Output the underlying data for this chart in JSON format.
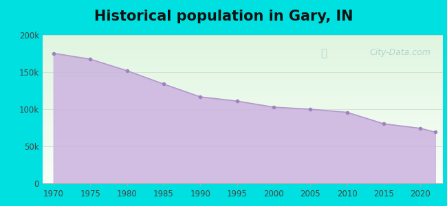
{
  "title": "Historical population in Gary, IN",
  "title_fontsize": 15,
  "title_fontweight": "bold",
  "years": [
    1970,
    1975,
    1980,
    1985,
    1990,
    1995,
    2000,
    2005,
    2010,
    2015,
    2020,
    2022
  ],
  "population": [
    175415,
    167490,
    151953,
    133911,
    116646,
    110975,
    102746,
    99999,
    95800,
    80294,
    74217,
    69093
  ],
  "ylim": [
    0,
    200000
  ],
  "yticks": [
    0,
    50000,
    100000,
    150000,
    200000
  ],
  "ytick_labels": [
    "0",
    "50k",
    "100k",
    "150k",
    "200k"
  ],
  "xlim": [
    1968.5,
    2023
  ],
  "xticks": [
    1970,
    1975,
    1980,
    1985,
    1990,
    1995,
    2000,
    2005,
    2010,
    2015,
    2020
  ],
  "fill_color": "#ccb3e0",
  "fill_alpha": 0.85,
  "line_color": "#b399cc",
  "line_width": 1.2,
  "marker_color": "#9e82bb",
  "marker_size": 4,
  "bg_outer": "#00e0e0",
  "bg_inner_top": "#e0f5e0",
  "bg_inner_bottom": "#f8fff8",
  "watermark_text": "City-Data.com",
  "watermark_color": "#88bbbb",
  "watermark_alpha": 0.55,
  "tick_label_color": "#444444",
  "tick_fontsize": 8.5,
  "grid_color": "#cccccc",
  "grid_alpha": 0.7,
  "grid_linewidth": 0.6
}
